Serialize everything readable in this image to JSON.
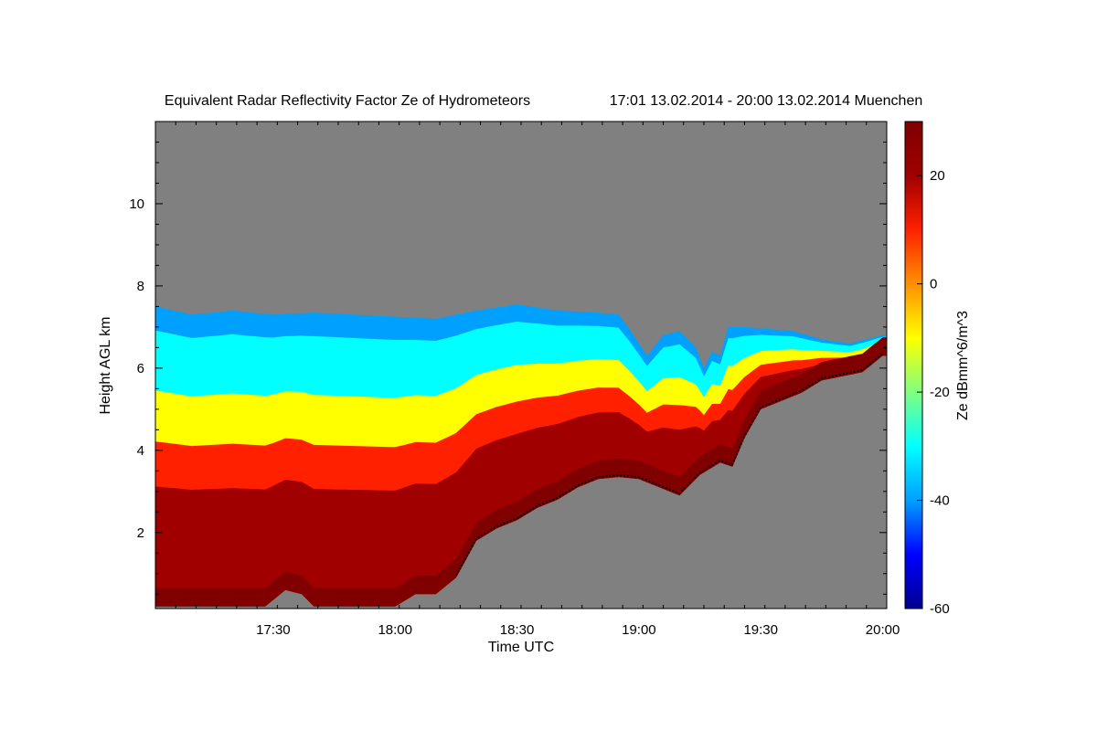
{
  "chart_data": {
    "type": "heatmap",
    "title": "Equivalent Radar Reflectivity Factor Ze of Hydrometeors",
    "subtitle": "17:01 13.02.2014 - 20:00 13.02.2014 Muenchen",
    "xlabel": "Time UTC",
    "ylabel": "Height AGL km",
    "colorbar_label": "Ze dBmm^6/m^3",
    "x_range_min": [
      1021,
      1201
    ],
    "y_range_km": [
      0.15,
      12.0
    ],
    "color_range_dbz": [
      -60,
      30
    ],
    "x_ticks": [
      {
        "min": 1050,
        "label": "17:30"
      },
      {
        "min": 1080,
        "label": "18:00"
      },
      {
        "min": 1110,
        "label": "18:30"
      },
      {
        "min": 1140,
        "label": "19:00"
      },
      {
        "min": 1170,
        "label": "19:30"
      },
      {
        "min": 1200,
        "label": "20:00"
      }
    ],
    "y_ticks": [
      {
        "km": 2,
        "label": "2"
      },
      {
        "km": 4,
        "label": "4"
      },
      {
        "km": 6,
        "label": "6"
      },
      {
        "km": 8,
        "label": "8"
      },
      {
        "km": 10,
        "label": "10"
      }
    ],
    "colorbar_ticks": [
      {
        "value": 20,
        "label": "20"
      },
      {
        "value": 0,
        "label": "0"
      },
      {
        "value": -20,
        "label": "-20"
      },
      {
        "value": -40,
        "label": "-40"
      },
      {
        "value": -60,
        "label": "-60"
      }
    ],
    "no_data_color": "#808080",
    "colormap": [
      "#00008f",
      "#0000ff",
      "#00a0ff",
      "#00ffff",
      "#80ff80",
      "#ffff00",
      "#ff9000",
      "#ff2000",
      "#a00000",
      "#800000"
    ],
    "cloud_top_km": [
      [
        1021,
        7.5
      ],
      [
        1030,
        7.3
      ],
      [
        1040,
        7.4
      ],
      [
        1050,
        7.3
      ],
      [
        1060,
        7.35
      ],
      [
        1070,
        7.3
      ],
      [
        1080,
        7.25
      ],
      [
        1090,
        7.2
      ],
      [
        1100,
        7.4
      ],
      [
        1110,
        7.55
      ],
      [
        1120,
        7.4
      ],
      [
        1130,
        7.35
      ],
      [
        1135,
        7.3
      ],
      [
        1138,
        6.9
      ],
      [
        1142,
        6.3
      ],
      [
        1146,
        6.8
      ],
      [
        1150,
        6.9
      ],
      [
        1154,
        6.5
      ],
      [
        1156,
        6.0
      ],
      [
        1158,
        6.4
      ],
      [
        1160,
        6.3
      ],
      [
        1162,
        7.0
      ],
      [
        1166,
        7.0
      ],
      [
        1172,
        6.95
      ],
      [
        1178,
        6.9
      ],
      [
        1185,
        6.7
      ],
      [
        1192,
        6.6
      ],
      [
        1200,
        6.8
      ]
    ],
    "cloud_base_km": [
      [
        1021,
        0.2
      ],
      [
        1030,
        0.2
      ],
      [
        1040,
        0.2
      ],
      [
        1048,
        0.2
      ],
      [
        1053,
        0.6
      ],
      [
        1057,
        0.5
      ],
      [
        1060,
        0.2
      ],
      [
        1070,
        0.2
      ],
      [
        1080,
        0.2
      ],
      [
        1085,
        0.5
      ],
      [
        1090,
        0.5
      ],
      [
        1095,
        0.9
      ],
      [
        1100,
        1.8
      ],
      [
        1105,
        2.1
      ],
      [
        1110,
        2.3
      ],
      [
        1115,
        2.6
      ],
      [
        1120,
        2.8
      ],
      [
        1125,
        3.1
      ],
      [
        1130,
        3.3
      ],
      [
        1135,
        3.35
      ],
      [
        1140,
        3.3
      ],
      [
        1145,
        3.1
      ],
      [
        1150,
        2.9
      ],
      [
        1155,
        3.4
      ],
      [
        1160,
        3.7
      ],
      [
        1163,
        3.6
      ],
      [
        1166,
        4.3
      ],
      [
        1170,
        5.0
      ],
      [
        1175,
        5.2
      ],
      [
        1180,
        5.4
      ],
      [
        1185,
        5.7
      ],
      [
        1190,
        5.8
      ],
      [
        1195,
        5.9
      ],
      [
        1200,
        6.3
      ]
    ],
    "cloud_layers": [
      {
        "label": "",
        "dbz": -45,
        "profile": "top"
      },
      {
        "label": "",
        "dbz": -30,
        "profile": "upper"
      },
      {
        "label": "",
        "dbz": -10,
        "profile": "mid"
      },
      {
        "label": "",
        "dbz": 5,
        "profile": "lower"
      },
      {
        "label": "",
        "dbz": 15,
        "profile": "core"
      },
      {
        "label": "",
        "dbz": 28,
        "profile": "surface"
      }
    ]
  }
}
